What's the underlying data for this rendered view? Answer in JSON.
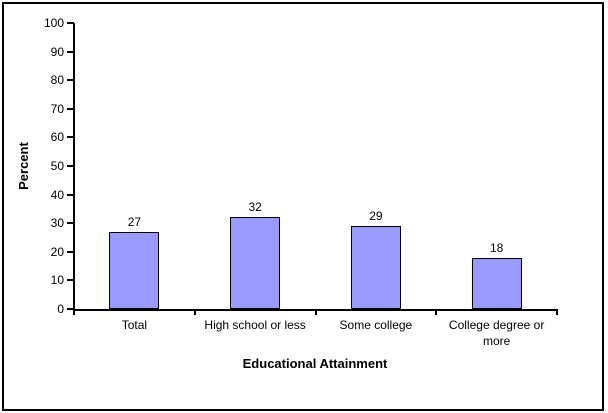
{
  "chart_data": {
    "type": "bar",
    "categories": [
      "Total",
      "High school or less",
      "Some college",
      "College degree or more"
    ],
    "values": [
      27,
      32,
      29,
      18
    ],
    "data_labels": true,
    "title": "",
    "xlabel": "Educational Attainment",
    "ylabel": "Percent",
    "ylim": [
      0,
      100
    ],
    "ytick_step": 10,
    "ytick_labels": [
      "0",
      "10",
      "20",
      "30",
      "40",
      "50",
      "60",
      "70",
      "80",
      "90",
      "100"
    ],
    "grid": false,
    "legend": "none",
    "bar_fill_color": "#9999FF",
    "bar_border_color": "#000000",
    "axis_color": "#000000",
    "text_color": "#000000",
    "background_color": "#FFFFFF"
  }
}
